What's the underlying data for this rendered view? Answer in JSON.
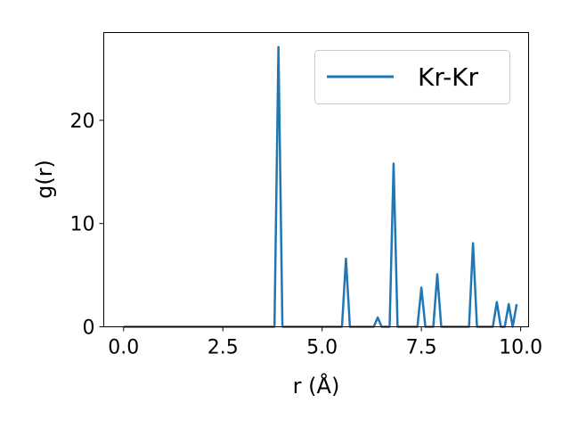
{
  "chart_data": {
    "type": "line",
    "title": "",
    "xlabel": "r (Å)",
    "ylabel": "g(r)",
    "xlim": [
      -0.5,
      10.2
    ],
    "ylim": [
      0,
      28.5
    ],
    "xticks": [
      0.0,
      2.5,
      5.0,
      7.5,
      10.0
    ],
    "xtick_labels": [
      "0.0",
      "2.5",
      "5.0",
      "7.5",
      "10.0"
    ],
    "yticks": [
      0,
      10,
      20
    ],
    "ytick_labels": [
      "0",
      "10",
      "20"
    ],
    "grid": false,
    "legend_position": "top-right",
    "series": [
      {
        "name": "Kr-Kr",
        "color": "#1f77b4",
        "x": [
          0.0,
          3.8,
          3.9,
          4.0,
          5.5,
          5.6,
          5.7,
          6.3,
          6.4,
          6.5,
          6.7,
          6.8,
          6.9,
          7.4,
          7.5,
          7.6,
          7.8,
          7.9,
          8.0,
          8.7,
          8.8,
          8.9,
          9.3,
          9.4,
          9.5,
          9.6,
          9.7,
          9.8,
          9.9
        ],
        "y": [
          0,
          0,
          27.1,
          0,
          0,
          6.6,
          0,
          0,
          0.9,
          0,
          0,
          15.8,
          0,
          0,
          3.8,
          0,
          0,
          5.1,
          0,
          0,
          8.1,
          0,
          0,
          2.4,
          0,
          0,
          2.2,
          0,
          2.2
        ]
      }
    ]
  }
}
